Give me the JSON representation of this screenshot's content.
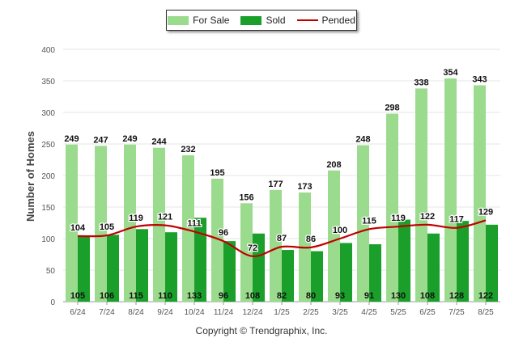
{
  "chart_data": {
    "type": "bar",
    "categories": [
      "6/24",
      "7/24",
      "8/24",
      "9/24",
      "10/24",
      "11/24",
      "12/24",
      "1/25",
      "2/25",
      "3/25",
      "4/25",
      "5/25",
      "6/25",
      "7/25",
      "8/25"
    ],
    "series": [
      {
        "name": "For Sale",
        "type": "bar",
        "color": "#9bdb8d",
        "values": [
          249,
          247,
          249,
          244,
          232,
          195,
          156,
          177,
          173,
          208,
          248,
          298,
          338,
          354,
          343
        ]
      },
      {
        "name": "Sold",
        "type": "bar",
        "color": "#1aa02a",
        "values": [
          105,
          106,
          115,
          110,
          133,
          96,
          108,
          82,
          80,
          93,
          91,
          130,
          108,
          128,
          122
        ]
      },
      {
        "name": "Pended",
        "type": "line",
        "color": "#c00000",
        "values": [
          104,
          105,
          119,
          121,
          111,
          96,
          72,
          87,
          86,
          100,
          115,
          119,
          122,
          117,
          129
        ]
      }
    ],
    "ylabel": "Number of Homes",
    "ylim": [
      0,
      400
    ],
    "yticks": [
      0,
      50,
      100,
      150,
      200,
      250,
      300,
      350,
      400
    ],
    "grid": true,
    "legend_position": "top-center"
  },
  "legend": {
    "items": [
      {
        "label": "For Sale",
        "color": "#9bdb8d",
        "kind": "box"
      },
      {
        "label": "Sold",
        "color": "#1aa02a",
        "kind": "box"
      },
      {
        "label": "Pended",
        "color": "#c00000",
        "kind": "line"
      }
    ]
  },
  "footer": {
    "copyright": "Copyright © Trendgraphix, Inc."
  }
}
